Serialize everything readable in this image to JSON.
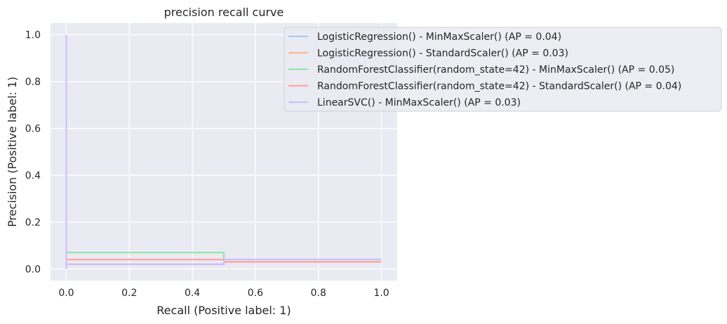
{
  "chart_data": {
    "type": "line",
    "title": "precision recall curve",
    "xlabel": "Recall (Positive label: 1)",
    "ylabel": "Precision (Positive label: 1)",
    "xlim": [
      -0.05,
      1.05
    ],
    "ylim": [
      -0.05,
      1.05
    ],
    "xticks": [
      0.0,
      0.2,
      0.4,
      0.6,
      0.8,
      1.0
    ],
    "xtick_labels": [
      "0.0",
      "0.2",
      "0.4",
      "0.6",
      "0.8",
      "1.0"
    ],
    "yticks": [
      0.0,
      0.2,
      0.4,
      0.6,
      0.8,
      1.0
    ],
    "ytick_labels": [
      "0.0",
      "0.2",
      "0.4",
      "0.6",
      "0.8",
      "1.0"
    ],
    "grid": true,
    "legend_position": "upper right, extending outside the axes",
    "background_color": "#eaeaf2",
    "grid_color": "#ffffff",
    "series": [
      {
        "name": "LogisticRegression() - MinMaxScaler() (AP = 0.04)",
        "color": "#a1c9f4",
        "points": [
          [
            1.0,
            0.04
          ],
          [
            1.0,
            0.04
          ],
          [
            0.5,
            0.04
          ],
          [
            0.5,
            0.02
          ],
          [
            0.0,
            0.02
          ],
          [
            0.0,
            0.0
          ]
        ]
      },
      {
        "name": "LogisticRegression() - StandardScaler() (AP = 0.03)",
        "color": "#ffb482",
        "points": [
          [
            1.0,
            0.03
          ],
          [
            0.5,
            0.03
          ],
          [
            0.5,
            0.02
          ],
          [
            0.0,
            0.02
          ],
          [
            0.0,
            0.0
          ]
        ]
      },
      {
        "name": "RandomForestClassifier(random_state=42) - MinMaxScaler() (AP = 0.05)",
        "color": "#8de5a1",
        "points": [
          [
            1.0,
            0.04
          ],
          [
            0.5,
            0.04
          ],
          [
            0.5,
            0.07
          ],
          [
            0.0,
            0.07
          ],
          [
            0.0,
            0.0
          ]
        ]
      },
      {
        "name": "RandomForestClassifier(random_state=42) - StandardScaler() (AP = 0.04)",
        "color": "#ff9f9b",
        "points": [
          [
            1.0,
            0.03
          ],
          [
            0.5,
            0.03
          ],
          [
            0.5,
            0.04
          ],
          [
            0.0,
            0.04
          ],
          [
            0.0,
            0.0
          ]
        ]
      },
      {
        "name": "LinearSVC() - MinMaxScaler() (AP = 0.03)",
        "color": "#d0bbff",
        "points": [
          [
            1.0,
            0.04
          ],
          [
            0.5,
            0.04
          ],
          [
            0.5,
            0.02
          ],
          [
            0.0,
            0.02
          ],
          [
            0.0,
            1.0
          ],
          [
            0.0,
            0.0
          ]
        ]
      }
    ]
  }
}
